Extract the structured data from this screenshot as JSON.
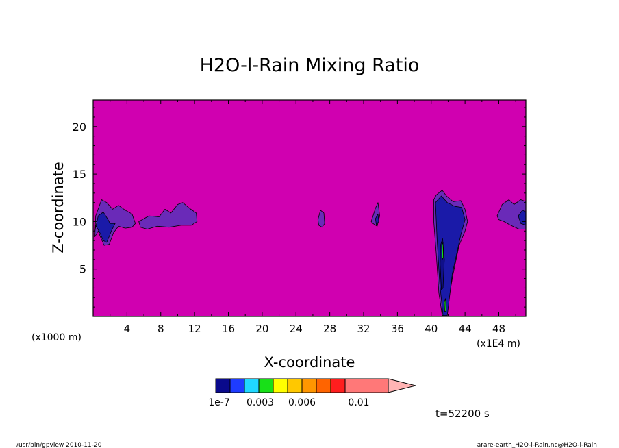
{
  "chart_data": {
    "type": "heatmap",
    "title": "H2O-l-Rain Mixing Ratio",
    "xlabel": "X-coordinate",
    "ylabel": "Z-coordinate",
    "x_unit_left": "(x1000 m)",
    "x_unit_right": "(x1E4 m)",
    "x_ticks": [
      4,
      8,
      12,
      16,
      20,
      24,
      28,
      32,
      36,
      40,
      44,
      48
    ],
    "y_ticks": [
      5,
      10,
      15,
      20
    ],
    "xlim": [
      0,
      51.2
    ],
    "ylim": [
      0,
      22.8
    ],
    "background_color": "#d000b0",
    "colorbar": {
      "labels": [
        "1e-7",
        "0.003",
        "0.006",
        "0.01"
      ],
      "colors": [
        "#0a0a8c",
        "#1e3cff",
        "#20d8ff",
        "#18e018",
        "#ffff00",
        "#ffc800",
        "#ff9600",
        "#ff6400",
        "#ff1e1e",
        "#ff7878",
        "#ffb4b4"
      ]
    },
    "time_label": "t=52200 s",
    "footer_left": "/usr/bin/gpview  2010-11-20",
    "footer_right": "arare-earth_H2O-l-Rain.nc@H2O-l-Rain",
    "regions": [
      {
        "x": [
          0.2,
          0.3,
          1.0,
          1.6,
          2.3,
          3.0,
          3.8,
          4.6,
          5.0,
          4.6,
          3.8,
          3.0,
          2.4,
          1.9,
          1.3,
          0.9,
          0.6,
          0.2
        ],
        "z": [
          8.4,
          10.6,
          12.3,
          12.0,
          11.3,
          11.7,
          11.2,
          10.8,
          9.8,
          9.4,
          9.3,
          9.5,
          8.8,
          7.6,
          7.5,
          8.3,
          9.0,
          8.4
        ],
        "color": "#6a2ab8"
      },
      {
        "x": [
          0.2,
          0.6,
          1.2,
          1.7,
          2.0,
          2.6,
          2.2,
          1.6,
          1.2,
          0.8,
          0.3
        ],
        "z": [
          9.0,
          10.6,
          11.0,
          10.3,
          9.8,
          9.8,
          9.1,
          7.8,
          8.0,
          8.8,
          9.6
        ],
        "color": "#1a1aa8"
      },
      {
        "x": [
          5.4,
          6.6,
          7.8,
          8.5,
          9.2,
          10.0,
          10.6,
          11.4,
          12.2,
          12.3,
          11.6,
          10.4,
          9.0,
          7.6,
          6.4,
          5.6
        ],
        "z": [
          10.0,
          10.6,
          10.5,
          11.3,
          10.9,
          11.8,
          12.0,
          11.4,
          10.9,
          10.0,
          9.6,
          9.6,
          9.4,
          9.5,
          9.2,
          9.4
        ],
        "color": "#6a2ab8"
      },
      {
        "x": [
          26.6,
          26.9,
          27.3,
          27.4,
          27.1,
          26.7
        ],
        "z": [
          10.2,
          11.2,
          10.9,
          9.8,
          9.4,
          9.6
        ],
        "color": "#6a2ab8"
      },
      {
        "x": [
          32.9,
          33.4,
          33.7,
          33.9,
          33.6,
          33.1
        ],
        "z": [
          10.0,
          11.4,
          12.0,
          10.6,
          9.5,
          9.8
        ],
        "color": "#6a2ab8"
      },
      {
        "x": [
          33.4,
          33.7,
          33.8,
          33.5
        ],
        "z": [
          10.3,
          10.8,
          10.0,
          9.7
        ],
        "color": "#1a1aa8"
      },
      {
        "x": [
          40.3,
          40.6,
          41.3,
          41.8,
          42.6,
          43.5,
          44.0,
          44.3,
          44.0,
          43.3,
          42.6,
          42.1,
          41.7,
          41.3,
          40.9,
          40.6,
          40.3
        ],
        "z": [
          12.3,
          12.8,
          13.3,
          12.7,
          12.1,
          12.2,
          11.3,
          10.0,
          9.0,
          7.5,
          4.5,
          2.0,
          0.1,
          0.1,
          2.5,
          6.5,
          10.0
        ],
        "color": "#6a2ab8"
      },
      {
        "x": [
          40.5,
          41.2,
          41.9,
          42.8,
          43.6,
          44.0,
          43.5,
          42.5,
          41.9,
          41.4,
          41.0,
          40.7
        ],
        "z": [
          12.0,
          12.7,
          12.0,
          11.6,
          11.5,
          10.2,
          8.6,
          4.5,
          0.1,
          0.1,
          3.5,
          8.0
        ],
        "color": "#1a1aa8"
      },
      {
        "x": [
          41.1,
          41.35,
          41.55,
          41.4,
          41.2,
          41.05
        ],
        "z": [
          7.5,
          8.2,
          6.0,
          3.0,
          2.8,
          5.5
        ],
        "color": "#10108a"
      },
      {
        "x": [
          41.25,
          41.4,
          41.45,
          41.3
        ],
        "z": [
          7.5,
          7.8,
          6.2,
          6.0
        ],
        "color": "#18e018"
      },
      {
        "x": [
          41.55,
          41.7,
          41.75,
          41.6
        ],
        "z": [
          1.5,
          1.9,
          0.6,
          0.5
        ],
        "color": "#18e018"
      },
      {
        "x": [
          47.8,
          48.4,
          49.2,
          49.8,
          50.6,
          51.2,
          51.2,
          50.4,
          49.4,
          48.6,
          48.0
        ],
        "z": [
          10.6,
          11.8,
          12.3,
          11.8,
          12.3,
          12.1,
          9.2,
          9.2,
          9.6,
          10.0,
          10.2
        ],
        "color": "#6a2ab8"
      },
      {
        "x": [
          50.3,
          50.8,
          51.2,
          51.2,
          50.6
        ],
        "z": [
          10.6,
          11.2,
          11.0,
          9.6,
          9.8
        ],
        "color": "#1a1aa8"
      }
    ]
  }
}
